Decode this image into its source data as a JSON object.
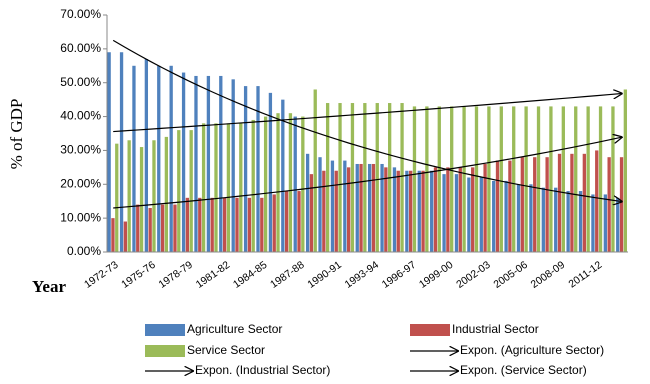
{
  "chart_data": {
    "type": "bar",
    "ylabel": "% of GDP",
    "xlabel": "Year",
    "categories": [
      "1972-73",
      null,
      null,
      "1975-76",
      null,
      null,
      "1978-79",
      null,
      null,
      "1981-82",
      null,
      null,
      "1984-85",
      null,
      null,
      "1987-88",
      null,
      null,
      "1990-91",
      null,
      null,
      "1993-94",
      null,
      null,
      "1996-97",
      null,
      null,
      "1999-00",
      null,
      null,
      "2002-03",
      null,
      null,
      "2005-06",
      null,
      null,
      "2008-09",
      null,
      null,
      "2011-12",
      null,
      null
    ],
    "series": [
      {
        "name": "Agriculture Sector",
        "color": "#4f81bd",
        "values": [
          59,
          59,
          55,
          57,
          55,
          55,
          53,
          52,
          52,
          52,
          51,
          49,
          49,
          47,
          45,
          40,
          29,
          28,
          27,
          27,
          26,
          26,
          26,
          25,
          24,
          24,
          24,
          23,
          23,
          22,
          22,
          21,
          21,
          20,
          20,
          19,
          19,
          18,
          18,
          17,
          17,
          16
        ]
      },
      {
        "name": "Industrial Sector",
        "color": "#c0504d",
        "values": [
          10,
          9,
          14,
          13,
          14,
          14,
          16,
          16,
          16,
          16,
          16,
          16,
          16,
          17,
          18,
          18,
          23,
          24,
          24,
          25,
          26,
          26,
          25,
          24,
          24,
          24,
          25,
          25,
          25,
          25,
          26,
          27,
          27,
          28,
          28,
          28,
          29,
          29,
          29,
          30,
          28,
          28
        ]
      },
      {
        "name": "Service Sector",
        "color": "#9bbb59",
        "values": [
          32,
          33,
          31,
          33,
          34,
          36,
          36,
          38,
          38,
          38,
          38,
          39,
          40,
          41,
          41,
          40,
          48,
          44,
          44,
          44,
          44,
          44,
          44,
          44,
          43,
          43,
          43,
          43,
          43,
          43,
          43,
          43,
          43,
          43,
          43,
          43,
          43,
          43,
          43,
          43,
          43,
          48
        ]
      }
    ],
    "trendlines": [
      {
        "name": "Expon. (Agriculture Sector)",
        "series": 0
      },
      {
        "name": "Expon. (Industrial Sector)",
        "series": 1
      },
      {
        "name": "Expon. (Service Sector)",
        "series": 2
      }
    ],
    "ylim": [
      0,
      70
    ],
    "yticks": [
      {
        "value": 0,
        "label": "0.00%"
      },
      {
        "value": 10,
        "label": "10.00%"
      },
      {
        "value": 20,
        "label": "20.00%"
      },
      {
        "value": 30,
        "label": "30.00%"
      },
      {
        "value": 40,
        "label": "40.00%"
      },
      {
        "value": 50,
        "label": "50.00%"
      },
      {
        "value": 60,
        "label": "60.00%"
      },
      {
        "value": 70,
        "label": "70.00%"
      }
    ],
    "grid": false
  }
}
